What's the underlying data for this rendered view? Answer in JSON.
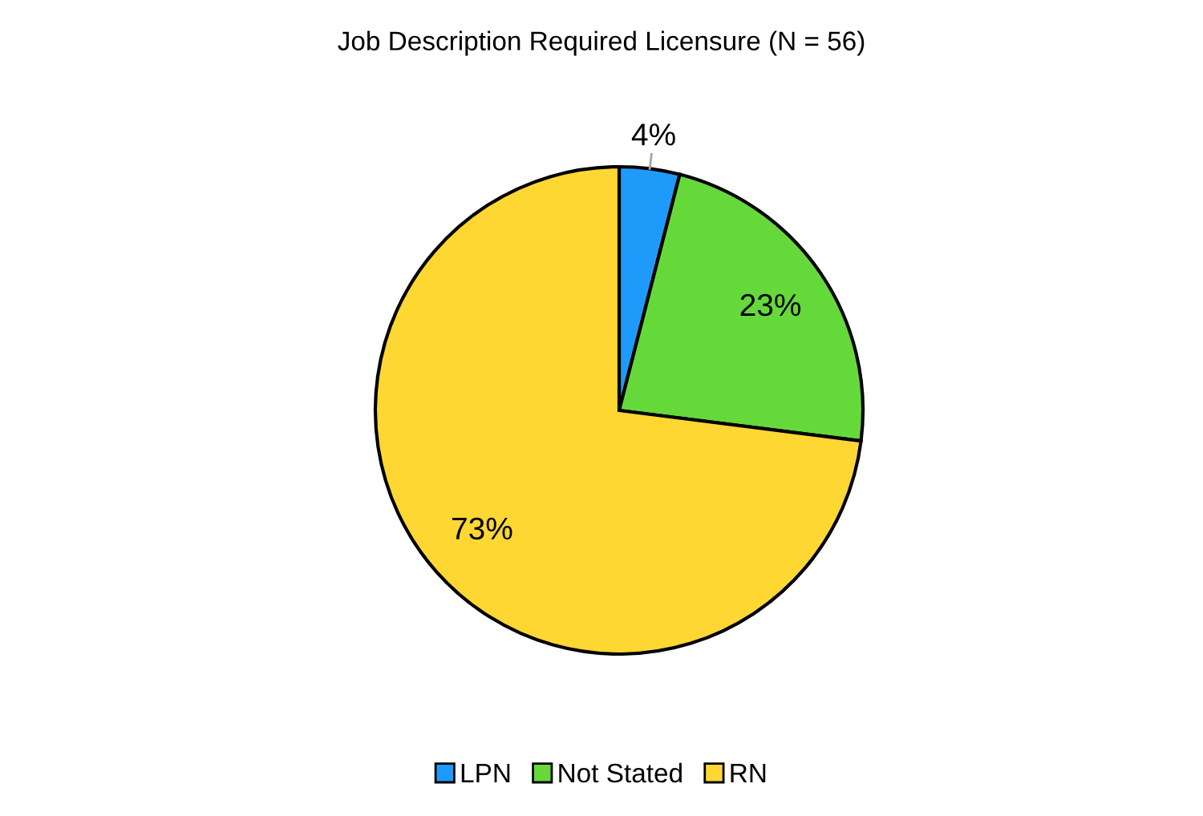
{
  "chart_data": {
    "type": "pie",
    "title": "Job Description Required Licensure (N = 56)",
    "categories": [
      "LPN",
      "Not Stated",
      "RN"
    ],
    "values": [
      4,
      23,
      73
    ],
    "colors": [
      "#1e9bfa",
      "#66d93a",
      "#ffd733"
    ],
    "value_labels": [
      "4%",
      "23%",
      "73%"
    ],
    "legend": "bottom"
  }
}
